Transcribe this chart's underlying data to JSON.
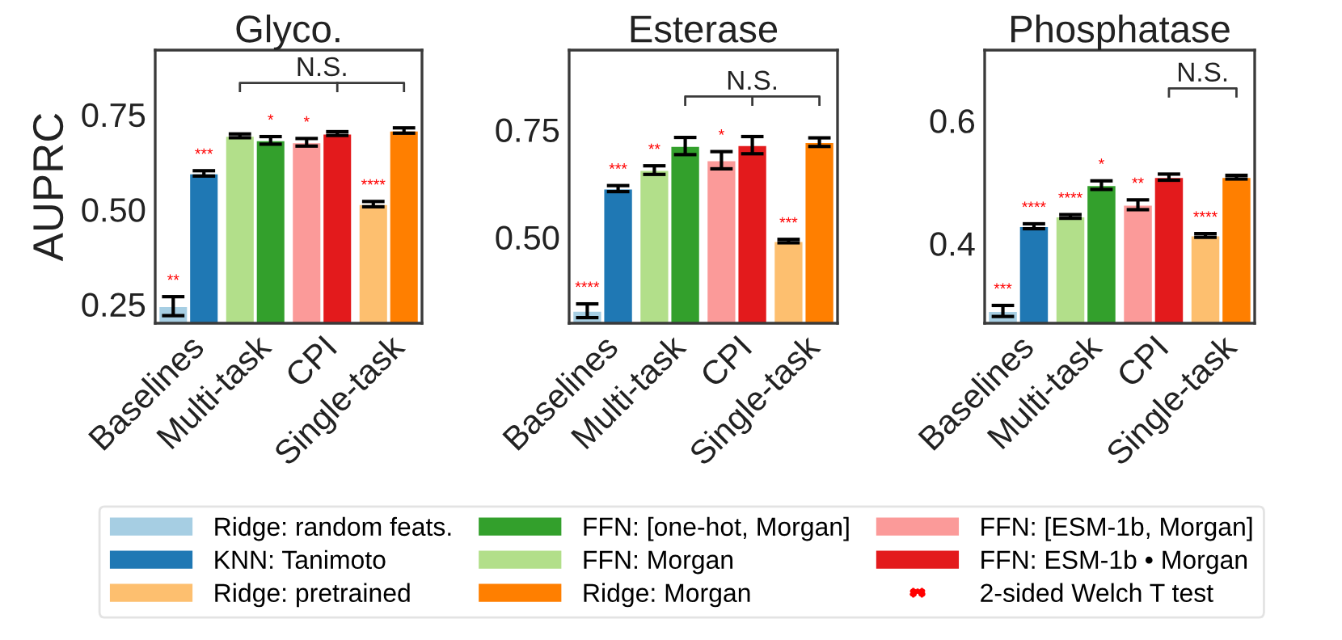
{
  "chart_data": [
    {
      "type": "bar",
      "title": "Glyco.",
      "ylabel": "AUPRC",
      "categories": [
        "Baselines",
        "Multi-task",
        "CPI",
        "Single-task"
      ],
      "ylim": [
        0.2,
        0.92
      ],
      "yticks": [
        {
          "value": 0.25,
          "label": "0.25"
        },
        {
          "value": 0.5,
          "label": "0.50"
        },
        {
          "value": 0.75,
          "label": "0.75"
        }
      ],
      "grid": false,
      "legend": "bottom",
      "series": [
        {
          "name": "Ridge: random feats.",
          "color": "#a6cee3",
          "values": [
            0.245,
            null,
            null,
            null
          ],
          "errors": [
            0.025,
            null,
            null,
            null
          ],
          "value_labels": [
            "**",
            null,
            null,
            null
          ]
        },
        {
          "name": "KNN: Tanimoto",
          "color": "#1f78b4",
          "values": [
            0.595,
            null,
            null,
            null
          ],
          "errors": [
            0.007,
            null,
            null,
            null
          ],
          "value_labels": [
            "***",
            null,
            null,
            null
          ]
        },
        {
          "name": "FFN: Morgan",
          "color": "#b2df8a",
          "values": [
            null,
            0.694,
            null,
            null
          ],
          "errors": [
            null,
            0.005,
            null,
            null
          ],
          "value_labels": [
            null,
            null,
            null,
            null
          ]
        },
        {
          "name": "FFN: [one-hot, Morgan]",
          "color": "#33a02c",
          "values": [
            null,
            0.682,
            null,
            null
          ],
          "errors": [
            null,
            0.01,
            null,
            null
          ],
          "value_labels": [
            null,
            "*",
            null,
            null
          ]
        },
        {
          "name": "FFN: [ESM-1b, Morgan]",
          "color": "#fb9a99",
          "values": [
            null,
            null,
            0.677,
            null
          ],
          "errors": [
            null,
            null,
            0.01,
            null
          ],
          "value_labels": [
            null,
            null,
            "*",
            null
          ]
        },
        {
          "name": "FFN: ESM-1b • Morgan",
          "color": "#e31a1c",
          "values": [
            null,
            null,
            0.7,
            null
          ],
          "errors": [
            null,
            null,
            0.005,
            null
          ],
          "value_labels": [
            null,
            null,
            null,
            null
          ]
        },
        {
          "name": "Ridge: pretrained",
          "color": "#fdbf6f",
          "values": [
            null,
            null,
            null,
            0.514
          ],
          "errors": [
            null,
            null,
            null,
            0.007
          ],
          "value_labels": [
            null,
            null,
            null,
            "****"
          ]
        },
        {
          "name": "Ridge: Morgan",
          "color": "#ff7f00",
          "values": [
            null,
            null,
            null,
            0.708
          ],
          "errors": [
            null,
            null,
            null,
            0.007
          ],
          "value_labels": [
            null,
            null,
            null,
            null
          ]
        }
      ],
      "annotations": [
        "N.S.",
        "2-sided Welch T test"
      ]
    },
    {
      "type": "bar",
      "title": "Esterase",
      "categories": [
        "Baselines",
        "Multi-task",
        "CPI",
        "Single-task"
      ],
      "ylim": [
        0.3,
        0.935
      ],
      "yticks": [
        {
          "value": 0.5,
          "label": "0.50"
        },
        {
          "value": 0.75,
          "label": "0.75"
        }
      ],
      "grid": false,
      "series": [
        {
          "color": "#a6cee3",
          "values": [
            0.329,
            null,
            null,
            null
          ],
          "errors": [
            0.016,
            null,
            null,
            null
          ],
          "value_labels": [
            "****",
            null,
            null,
            null
          ]
        },
        {
          "color": "#1f78b4",
          "values": [
            0.613,
            null,
            null,
            null
          ],
          "errors": [
            0.007,
            null,
            null,
            null
          ],
          "value_labels": [
            "***",
            null,
            null,
            null
          ]
        },
        {
          "color": "#b2df8a",
          "values": [
            null,
            0.656,
            null,
            null
          ],
          "errors": [
            null,
            0.01,
            null,
            null
          ],
          "value_labels": [
            null,
            "**",
            null,
            null
          ]
        },
        {
          "color": "#33a02c",
          "values": [
            null,
            0.712,
            null,
            null
          ],
          "errors": [
            null,
            0.02,
            null,
            null
          ],
          "value_labels": [
            null,
            null,
            null,
            null
          ]
        },
        {
          "color": "#fb9a99",
          "values": [
            null,
            null,
            0.679,
            null
          ],
          "errors": [
            null,
            null,
            0.02,
            null
          ],
          "value_labels": [
            null,
            null,
            "*",
            null
          ]
        },
        {
          "color": "#e31a1c",
          "values": [
            null,
            null,
            0.714,
            null
          ],
          "errors": [
            null,
            null,
            0.02,
            null
          ],
          "value_labels": [
            null,
            null,
            null,
            null
          ]
        },
        {
          "color": "#fdbf6f",
          "values": [
            null,
            null,
            null,
            0.491
          ],
          "errors": [
            null,
            null,
            null,
            0.004
          ],
          "value_labels": [
            null,
            null,
            null,
            "***"
          ]
        },
        {
          "color": "#ff7f00",
          "values": [
            null,
            null,
            null,
            0.721
          ],
          "errors": [
            null,
            null,
            null,
            0.01
          ],
          "value_labels": [
            null,
            null,
            null,
            null
          ]
        }
      ],
      "annotations": [
        "N.S."
      ]
    },
    {
      "type": "bar",
      "title": "Phosphatase",
      "categories": [
        "Baselines",
        "Multi-task",
        "CPI",
        "Single-task"
      ],
      "ylim": [
        0.27,
        0.715
      ],
      "yticks": [
        {
          "value": 0.4,
          "label": "0.4"
        },
        {
          "value": 0.6,
          "label": "0.6"
        }
      ],
      "grid": false,
      "series": [
        {
          "color": "#a6cee3",
          "values": [
            0.29,
            null,
            null,
            null
          ],
          "errors": [
            0.009,
            null,
            null,
            null
          ],
          "value_labels": [
            "***",
            null,
            null,
            null
          ]
        },
        {
          "color": "#1f78b4",
          "values": [
            0.428,
            null,
            null,
            null
          ],
          "errors": [
            0.004,
            null,
            null,
            null
          ],
          "value_labels": [
            "****",
            null,
            null,
            null
          ]
        },
        {
          "color": "#b2df8a",
          "values": [
            null,
            0.444,
            null,
            null
          ],
          "errors": [
            null,
            0.003,
            null,
            null
          ],
          "value_labels": [
            null,
            "****",
            null,
            null
          ]
        },
        {
          "color": "#33a02c",
          "values": [
            null,
            0.495,
            null,
            null
          ],
          "errors": [
            null,
            0.007,
            null,
            null
          ],
          "value_labels": [
            null,
            "*",
            null,
            null
          ]
        },
        {
          "color": "#fb9a99",
          "values": [
            null,
            null,
            0.463,
            null
          ],
          "errors": [
            null,
            null,
            0.008,
            null
          ],
          "value_labels": [
            null,
            null,
            "**",
            null
          ]
        },
        {
          "color": "#e31a1c",
          "values": [
            null,
            null,
            0.508,
            null
          ],
          "errors": [
            null,
            null,
            0.005,
            null
          ],
          "value_labels": [
            null,
            null,
            null,
            null
          ]
        },
        {
          "color": "#fdbf6f",
          "values": [
            null,
            null,
            null,
            0.413
          ],
          "errors": [
            null,
            null,
            null,
            0.003
          ],
          "value_labels": [
            null,
            null,
            null,
            "****"
          ]
        },
        {
          "color": "#ff7f00",
          "values": [
            null,
            null,
            null,
            0.508
          ],
          "errors": [
            null,
            null,
            null,
            0.003
          ],
          "value_labels": [
            null,
            null,
            null,
            null
          ]
        }
      ],
      "annotations": [
        "N.S."
      ]
    }
  ]
}
